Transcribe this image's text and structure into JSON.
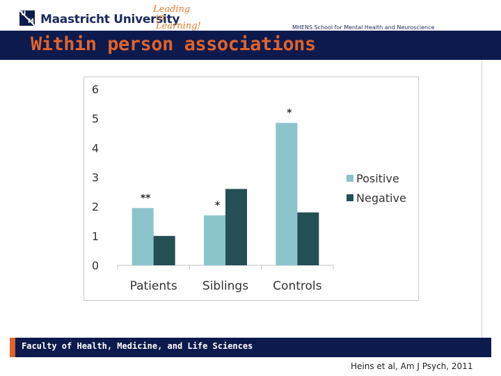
{
  "header": {
    "logo_top": "U",
    "logo_bottom": "M",
    "university": "Maastricht University",
    "tagline_line1": "Leading",
    "tagline_line2": "in Learning!",
    "school": "MHENS School for Mental Health and Neuroscience"
  },
  "slide": {
    "title": "Within person associations"
  },
  "footer": {
    "faculty": "Faculty of Health, Medicine, and Life Sciences",
    "citation": "Heins et al, Am J Psych, 2011"
  },
  "colors": {
    "positive": "#8cc4cc",
    "negative": "#234f55",
    "accent": "#e0632a",
    "navy": "#0d1a4d"
  },
  "chart_data": {
    "type": "bar",
    "title": "",
    "xlabel": "",
    "ylabel": "",
    "ylim": [
      0,
      6
    ],
    "yticks": [
      0,
      1,
      2,
      3,
      4,
      5,
      6
    ],
    "categories": [
      "Patients",
      "Siblings",
      "Controls"
    ],
    "series": [
      {
        "name": "Positive",
        "values": [
          1.95,
          1.7,
          4.85
        ]
      },
      {
        "name": "Negative",
        "values": [
          1.0,
          2.6,
          1.8
        ]
      }
    ],
    "annotations": [
      {
        "category": "Patients",
        "series": "Positive",
        "text": "**"
      },
      {
        "category": "Siblings",
        "series": "Positive",
        "text": "*"
      },
      {
        "category": "Controls",
        "series": "Positive",
        "text": "*"
      }
    ],
    "legend": "right",
    "grid": false
  }
}
